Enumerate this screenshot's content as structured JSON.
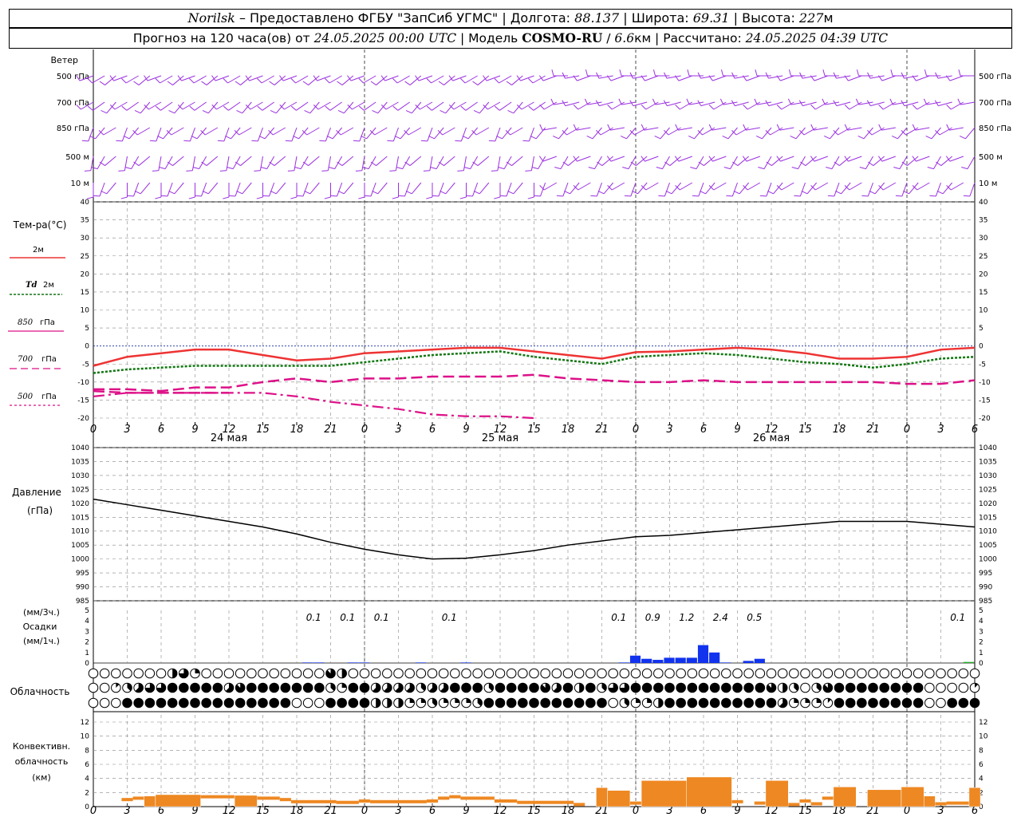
{
  "header": {
    "station": "Norilsk",
    "sep1": " – Предоставлено ФГБУ \"ЗапСиб УГМС\" | Долгота: ",
    "lon": "88.137",
    "sep2": " | Широта: ",
    "lat": "69.31",
    "sep3": " | Высота: ",
    "alt": "227",
    "alt_unit": "м",
    "fc_prefix": "Прогноз на 120 часа(ов) от ",
    "fc_start": "24.05.2025 00:00 UTC",
    "model_prefix": "  | Модель ",
    "model": "COSMO-RU",
    "res_sep": " / ",
    "res": "6.6",
    "res_unit": "км | Рассчитано: ",
    "calc": "24.05.2025 04:39 UTC"
  },
  "wind": {
    "title": "Ветер",
    "levels": [
      "500 гПа",
      "700 гПа",
      "850 гПа",
      "500 м",
      "10  м"
    ],
    "color": "#9b30e0"
  },
  "time_axis": {
    "hours": [
      0,
      3,
      6,
      9,
      12,
      15,
      18,
      21,
      0,
      3,
      6,
      9,
      12,
      15,
      18,
      21,
      0,
      3,
      6,
      9,
      12,
      15,
      18,
      21,
      0,
      3,
      6
    ],
    "days": [
      "24 мая",
      "25 мая",
      "26 мая"
    ]
  },
  "temp_legend": {
    "title": "Тем-ра(°C)",
    "t2m": "2м",
    "td_sym": "Td",
    "td2m": "2м",
    "t850_sym": "850",
    "t850_unit": "гПа",
    "t700_sym": "700",
    "t700_unit": "гПа",
    "t500_sym": "500",
    "t500_unit": "гПа"
  },
  "pressure_legend": {
    "title": "Давление",
    "unit": "(гПа)"
  },
  "precip_legend": {
    "unit1": "(мм/3ч.)",
    "title": "Осадки",
    "unit2": "(мм/1ч.)"
  },
  "cloud_legend": {
    "title": "Облачность"
  },
  "conv_legend": {
    "line1": "Конвективн.",
    "line2": "облачность",
    "unit": "(км)"
  },
  "colors": {
    "t2m": "#ee3333",
    "td": "#117711",
    "t850": "#dd1188",
    "t700": "#dd1188",
    "t500": "#dd1188",
    "pressure": "#000000",
    "precip": "#1133ee",
    "precip_green": "#22aa22",
    "conv": "#ee8822"
  },
  "chart_data": [
    {
      "type": "line",
      "title": "Тем-ра(°C)",
      "x_hours": [
        0,
        3,
        6,
        9,
        12,
        15,
        18,
        21,
        24,
        27,
        30,
        33,
        36,
        39,
        42,
        45,
        48,
        51,
        54,
        57,
        60,
        63,
        66,
        69,
        72,
        75,
        78
      ],
      "ylim": [
        -20,
        40
      ],
      "series": [
        {
          "name": "2м",
          "values": [
            -5.5,
            -3,
            -2,
            -1,
            -1,
            -2.5,
            -4,
            -3.5,
            -2,
            -1.5,
            -1,
            -0.5,
            -0.5,
            -1.5,
            -2.5,
            -3.5,
            -1.7,
            -1.5,
            -1,
            -0.5,
            -1,
            -2,
            -3.5,
            -3.5,
            -3,
            -1,
            -0.5
          ]
        },
        {
          "name": "Td 2м",
          "values": [
            -7.5,
            -6.5,
            -6,
            -5.5,
            -5.5,
            -5.5,
            -5.5,
            -5.5,
            -4.5,
            -3.5,
            -2.5,
            -2,
            -1.5,
            -3,
            -4,
            -5,
            -3,
            -2.5,
            -2,
            -2.5,
            -3.5,
            -4.5,
            -5,
            -6,
            -5,
            -3.5,
            -3
          ]
        },
        {
          "name": "850 гПа",
          "values": [
            -12,
            -12,
            -12.5,
            -11.5,
            -11.5,
            -10,
            -9,
            -10,
            -9,
            -9,
            -8.5,
            -8.5,
            -8.5,
            -8,
            -9,
            -9.5,
            -10,
            -10,
            -9.5,
            -10,
            -10,
            -10,
            -10,
            -10,
            -10.5,
            -10.5,
            -9.5
          ]
        },
        {
          "name": "700 гПа",
          "values": [
            -12.5,
            -13,
            -13,
            -13,
            -13
          ]
        },
        {
          "name": "500 гПа",
          "values": [
            -14,
            -13,
            -13,
            -13,
            -13,
            -13,
            -14,
            -15.5,
            -16.5,
            -17.5,
            -19,
            -19.5,
            -19.5,
            -20
          ]
        }
      ]
    },
    {
      "type": "line",
      "title": "Давление",
      "x_hours": [
        0,
        3,
        6,
        9,
        12,
        15,
        18,
        21,
        24,
        27,
        30,
        33,
        36,
        39,
        42,
        45,
        48,
        51,
        54,
        57,
        60,
        63,
        66,
        69,
        72,
        75,
        78
      ],
      "ylim": [
        985,
        1040
      ],
      "series": [
        {
          "name": "Давление",
          "values": [
            1021.5,
            1019.5,
            1017.5,
            1015.5,
            1013.5,
            1011.5,
            1009,
            1006,
            1003.5,
            1001.5,
            1000,
            1000.3,
            1001.5,
            1003,
            1005,
            1006.5,
            1008,
            1008.5,
            1009.5,
            1010.5,
            1011.5,
            1012.5,
            1013.5,
            1013.5,
            1013.5,
            1012.5,
            1011.5
          ]
        }
      ]
    },
    {
      "type": "bar",
      "title": "Осадки",
      "x_hours": [
        19,
        20,
        23,
        24,
        29,
        33,
        47,
        48,
        49,
        50,
        51,
        52,
        53,
        54,
        55,
        56,
        58,
        59,
        78
      ],
      "ylim": [
        0,
        5
      ],
      "series": [
        {
          "name": "мм/1ч",
          "values": [
            0.05,
            0.05,
            0.05,
            0.05,
            0.05,
            0.05,
            0.05,
            0.7,
            0.4,
            0.3,
            0.5,
            0.5,
            0.5,
            1.7,
            1.0,
            0.05,
            0.2,
            0.4,
            0.1
          ]
        }
      ],
      "labels_3h": [
        {
          "x": 19.5,
          "text": "0.1"
        },
        {
          "x": 22.5,
          "text": "0.1"
        },
        {
          "x": 25.5,
          "text": "0.1"
        },
        {
          "x": 31.5,
          "text": "0.1"
        },
        {
          "x": 46.5,
          "text": "0.1"
        },
        {
          "x": 49.5,
          "text": "0.9"
        },
        {
          "x": 52.5,
          "text": "1.2"
        },
        {
          "x": 55.5,
          "text": "2.4"
        },
        {
          "x": 58.5,
          "text": "0.5"
        },
        {
          "x": 76.5,
          "text": "0.1"
        }
      ]
    },
    {
      "type": "bar",
      "title": "Конвективн. облачность",
      "ylim": [
        0,
        13
      ],
      "segments": [
        [
          2.5,
          3.5,
          1
        ],
        [
          3.5,
          4.5,
          1.2
        ],
        [
          4.5,
          5.5,
          1.5
        ],
        [
          5.5,
          9.5,
          1.7
        ],
        [
          9.5,
          12.5,
          1.4
        ],
        [
          12.5,
          14.5,
          1.6
        ],
        [
          14.5,
          16.5,
          1.2
        ],
        [
          16.5,
          17.5,
          1
        ],
        [
          17.5,
          21.5,
          0.7
        ],
        [
          21.5,
          23.5,
          0.6
        ],
        [
          23.5,
          24.5,
          0.8
        ],
        [
          24.5,
          29.5,
          0.7
        ],
        [
          29.5,
          30.5,
          0.8
        ],
        [
          30.5,
          31.5,
          1.2
        ],
        [
          31.5,
          32.5,
          1.4
        ],
        [
          32.5,
          35.5,
          1.2
        ],
        [
          35.5,
          37.5,
          0.8
        ],
        [
          37.5,
          42.5,
          0.6
        ],
        [
          42.5,
          43.5,
          0.3
        ],
        [
          44.5,
          45.5,
          2.7
        ],
        [
          45.5,
          47.5,
          2.3
        ],
        [
          47.5,
          48.5,
          0.5
        ],
        [
          48.5,
          52.5,
          3.7
        ],
        [
          52.5,
          56.5,
          4.2
        ],
        [
          56.5,
          57.5,
          0.7
        ],
        [
          58.5,
          59.5,
          0.5
        ],
        [
          59.5,
          61.5,
          3.7
        ],
        [
          61.5,
          62.5,
          0.3
        ],
        [
          62.5,
          63.5,
          0.8
        ],
        [
          63.5,
          64.5,
          0.4
        ],
        [
          64.5,
          65.5,
          1.2
        ],
        [
          65.5,
          67.5,
          2.8
        ],
        [
          68.5,
          71.5,
          2.4
        ],
        [
          71.5,
          73.5,
          2.8
        ],
        [
          73.5,
          74.5,
          1.5
        ],
        [
          74.5,
          75.5,
          0.4
        ],
        [
          75.5,
          77.5,
          0.5
        ],
        [
          77.5,
          78.5,
          2.7
        ]
      ]
    }
  ],
  "clouds": {
    "rows": [
      "0000000462000000000007400000000000000000000000000000000000000000000000000000000",
      "0013566888885788888883288555535588838888758483668888888888887430378888888800001",
      "0008888888888888880008888444223222388888888888032248888888888522218888888800888"
    ]
  }
}
